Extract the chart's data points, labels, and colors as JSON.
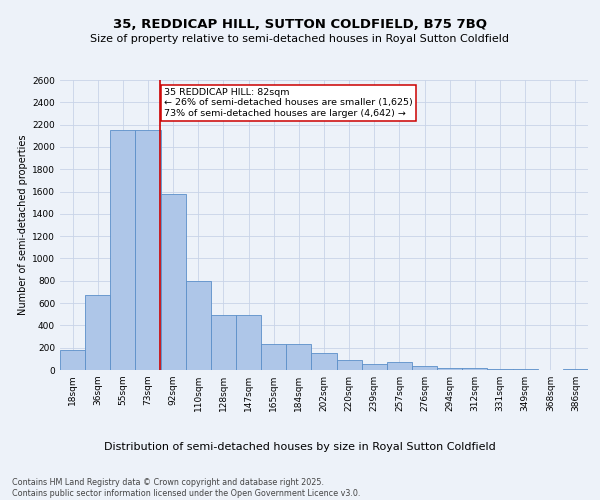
{
  "title": "35, REDDICAP HILL, SUTTON COLDFIELD, B75 7BQ",
  "subtitle": "Size of property relative to semi-detached houses in Royal Sutton Coldfield",
  "xlabel": "Distribution of semi-detached houses by size in Royal Sutton Coldfield",
  "ylabel": "Number of semi-detached properties",
  "categories": [
    "18sqm",
    "36sqm",
    "55sqm",
    "73sqm",
    "92sqm",
    "110sqm",
    "128sqm",
    "147sqm",
    "165sqm",
    "184sqm",
    "202sqm",
    "220sqm",
    "239sqm",
    "257sqm",
    "276sqm",
    "294sqm",
    "312sqm",
    "331sqm",
    "349sqm",
    "368sqm",
    "386sqm"
  ],
  "values": [
    180,
    670,
    2150,
    2150,
    1575,
    800,
    490,
    490,
    230,
    230,
    155,
    90,
    55,
    70,
    35,
    20,
    15,
    5,
    5,
    0,
    10
  ],
  "bar_color": "#aec6e8",
  "bar_edge_color": "#5b8fc9",
  "grid_color": "#c8d4e8",
  "background_color": "#edf2f9",
  "vline_color": "#cc0000",
  "annotation_text": "35 REDDICAP HILL: 82sqm\n← 26% of semi-detached houses are smaller (1,625)\n73% of semi-detached houses are larger (4,642) →",
  "annotation_box_color": "#ffffff",
  "annotation_box_edge_color": "#cc0000",
  "footer": "Contains HM Land Registry data © Crown copyright and database right 2025.\nContains public sector information licensed under the Open Government Licence v3.0.",
  "ylim": [
    0,
    2600
  ],
  "title_fontsize": 9.5,
  "subtitle_fontsize": 8,
  "ylabel_fontsize": 7,
  "xlabel_fontsize": 8,
  "tick_fontsize": 6.5,
  "footer_fontsize": 5.8,
  "annot_fontsize": 6.8
}
